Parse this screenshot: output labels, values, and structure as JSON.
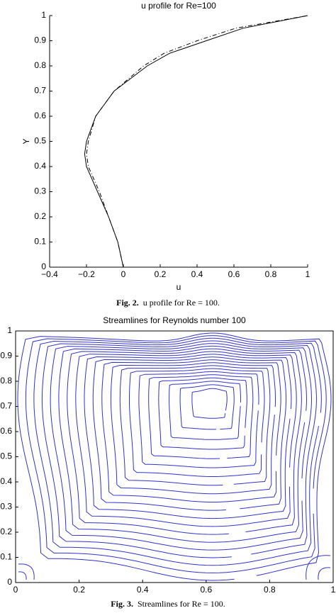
{
  "chart_data": [
    {
      "type": "line",
      "title": "u profile for Re=100",
      "xlabel": "u",
      "ylabel": "Y",
      "xlim": [
        -0.4,
        1
      ],
      "ylim": [
        0,
        1
      ],
      "xticks": [
        {
          "value": -0.4,
          "label": "−0.4"
        },
        {
          "value": -0.2,
          "label": "−0.2"
        },
        0,
        0.2,
        0.4,
        0.6,
        0.8,
        1
      ],
      "yticks": [
        0,
        0.1,
        0.2,
        0.3,
        0.4,
        0.5,
        0.6,
        0.7,
        0.8,
        0.9,
        1
      ],
      "series": [
        {
          "color": "#000000",
          "dash": "solid",
          "x": [
            0,
            -0.03,
            -0.08,
            -0.14,
            -0.2,
            -0.21,
            -0.2,
            -0.15,
            -0.05,
            0.13,
            0.25,
            0.45,
            0.65,
            1
          ],
          "values": [
            0,
            0.1,
            0.2,
            0.3,
            0.4,
            0.45,
            0.5,
            0.6,
            0.7,
            0.8,
            0.85,
            0.9,
            0.95,
            1
          ]
        },
        {
          "color": "#000000",
          "dash": "dashdot",
          "x": [
            0,
            -0.03,
            -0.08,
            -0.13,
            -0.19,
            -0.2,
            -0.19,
            -0.15,
            -0.05,
            0.11,
            0.22,
            0.4,
            0.61,
            1
          ],
          "values": [
            0,
            0.1,
            0.2,
            0.3,
            0.4,
            0.45,
            0.5,
            0.6,
            0.7,
            0.8,
            0.85,
            0.9,
            0.95,
            1
          ]
        }
      ],
      "caption_label": "Fig. 2.",
      "caption": "u profile for Re = 100."
    },
    {
      "type": "streamline",
      "title": "Streamlines for Reynolds number 100",
      "xlim": [
        0,
        1
      ],
      "ylim": [
        0,
        1
      ],
      "xticks": [
        0,
        0.2,
        0.4,
        0.6,
        0.8,
        1
      ],
      "yticks": [
        0,
        0.1,
        0.2,
        0.3,
        0.4,
        0.5,
        0.6,
        0.7,
        0.8,
        0.9,
        1
      ],
      "color": "#3333cc",
      "vortex_center": {
        "x": 0.62,
        "y": 0.73
      },
      "caption_label": "Fig. 3.",
      "caption": "Streamlines for Re = 100."
    }
  ]
}
